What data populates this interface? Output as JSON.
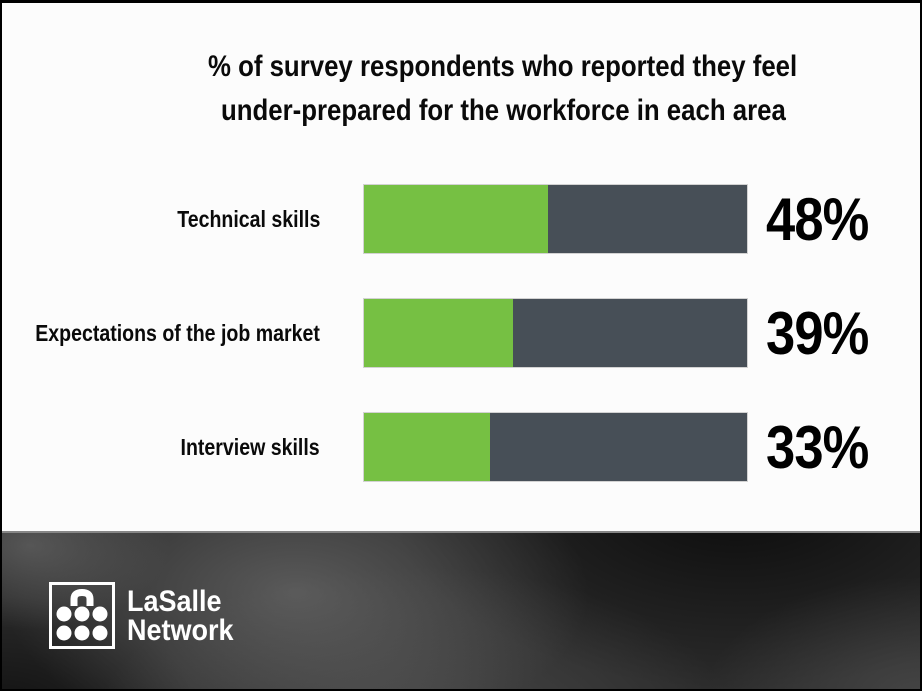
{
  "title": {
    "line1": "% of survey respondents who reported they feel",
    "line2": "under-prepared for the workforce in each area"
  },
  "chart_data": {
    "type": "bar",
    "orientation": "horizontal",
    "title": "% of survey respondents who reported they feel under-prepared for the workforce in each area",
    "categories": [
      "Technical skills",
      "Expectations of the job market",
      "Interview skills"
    ],
    "values": [
      48,
      39,
      33
    ],
    "value_labels": [
      "48%",
      "39%",
      "33%"
    ],
    "xlim": [
      0,
      100
    ],
    "grid": false,
    "legend": false,
    "colors": {
      "bar_fill": "#76c043",
      "bar_remainder": "#474f57",
      "value_label_text": "#000000",
      "category_label_text": "#0a0a0a"
    }
  },
  "footer": {
    "brand_line1": "LaSalle",
    "brand_line2": "Network",
    "logo_icon": "briefcase-dots-icon",
    "brand_color": "#ffffff"
  },
  "page": {
    "background": "#fcfcfc",
    "footer_background_base": "#2b2b2b"
  }
}
